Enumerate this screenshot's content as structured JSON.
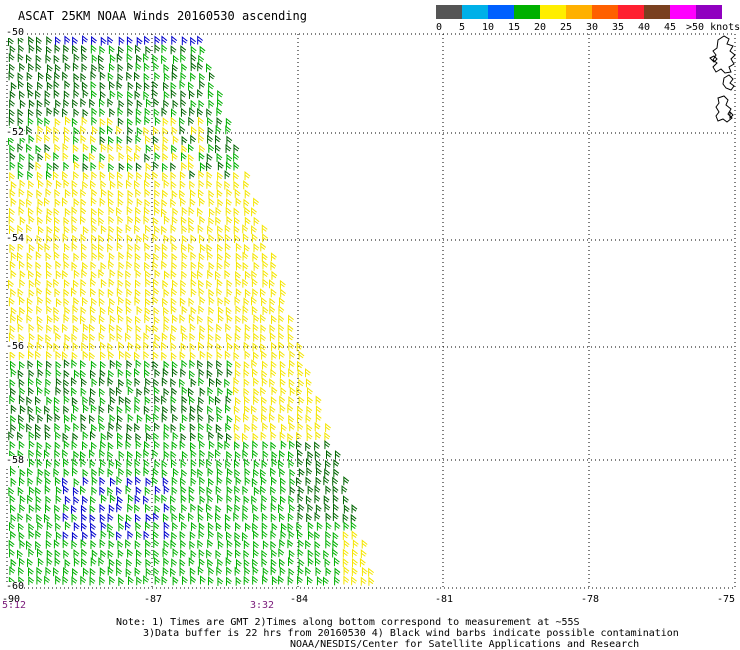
{
  "title": "ASCAT 25KM NOAA Winds 20160530 ascending",
  "legend": {
    "colors": [
      "#555555",
      "#00b0e8",
      "#0060ff",
      "#00b000",
      "#ffee00",
      "#ffb000",
      "#ff6000",
      "#ff2030",
      "#7a4020",
      "#ff00ff",
      "#9000c0"
    ],
    "labels": [
      "0",
      "5",
      "10",
      "15",
      "20",
      "25",
      "30",
      "35",
      "40",
      "45",
      ">50 knots"
    ]
  },
  "map": {
    "lat_labels": [
      "-50",
      "-52",
      "-54",
      "-56",
      "-58",
      "-60"
    ],
    "lon_labels": [
      "-90",
      "-87",
      "-84",
      "-81",
      "-78",
      "-75"
    ],
    "time_labels": [
      "5:12",
      "3:32"
    ]
  },
  "wind_palette": {
    "blue": "#0000cc",
    "dark_green": "#006400",
    "green": "#00b000",
    "yellow": "#f5e600"
  },
  "notes": [
    "Note: 1) Times are GMT 2)Times along bottom correspond to measurement at ~55S",
    "3)Data buffer is 22 hrs from 20160530 4) Black wind barbs indicate possible contamination",
    "NOAA/NESDIS/Center for Satellite Applications and Research"
  ]
}
